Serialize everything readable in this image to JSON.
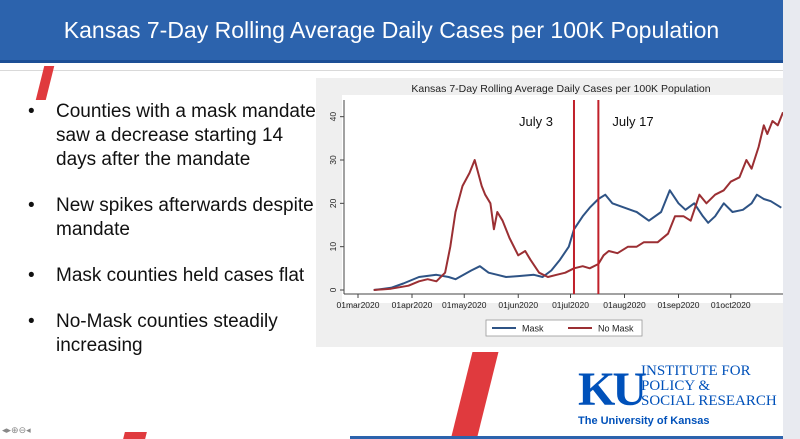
{
  "slide_title": "Kansas 7-Day Rolling Average Daily Cases per 100K Population",
  "bullets": [
    "Counties with a mask mandate saw a decrease starting 14 days after the mandate",
    "New spikes afterwards despite mandate",
    "Mask counties held cases flat",
    "No-Mask counties steadily increasing"
  ],
  "logo": {
    "letters": "KU",
    "line1": "INSTITUTE FOR",
    "line2": "POLICY &",
    "line3": "SOCIAL RESEARCH",
    "university": "The University of Kansas"
  },
  "nav_controls": "◂▸⊕⊖◂",
  "colors": {
    "title_bar": "#2c63ad",
    "accent_red": "#e03a3e",
    "mask_line": "#2e5385",
    "no_mask_line": "#9b2f33",
    "mandate_line": "#c0202a"
  },
  "chart_data": {
    "type": "line",
    "title": "Kansas 7-Day Rolling Average Daily Cases per 100K Population",
    "xlabel": "",
    "ylabel": "",
    "x_ticks": [
      "01mar2020",
      "01apr2020",
      "01may2020",
      "01jun2020",
      "01jul2020",
      "01aug2020",
      "01sep2020",
      "01oct2020"
    ],
    "x_range": [
      "2020-03-01",
      "2020-10-31"
    ],
    "y_ticks": [
      0,
      10,
      20,
      30,
      40
    ],
    "ylim": [
      0,
      42
    ],
    "grid": false,
    "legend": "bottom",
    "annotations": [
      {
        "label": "July 3",
        "date": "2020-07-03"
      },
      {
        "label": "July 17",
        "date": "2020-07-17"
      }
    ],
    "series": [
      {
        "name": "Mask",
        "color": "#2e5385",
        "points": [
          [
            "2020-03-10",
            0
          ],
          [
            "2020-03-20",
            0.5
          ],
          [
            "2020-03-27",
            1.5
          ],
          [
            "2020-04-05",
            3
          ],
          [
            "2020-04-15",
            3.5
          ],
          [
            "2020-04-22",
            3
          ],
          [
            "2020-04-26",
            2.5
          ],
          [
            "2020-05-05",
            4.5
          ],
          [
            "2020-05-10",
            5.5
          ],
          [
            "2020-05-15",
            4
          ],
          [
            "2020-05-20",
            3.5
          ],
          [
            "2020-05-25",
            3
          ],
          [
            "2020-06-01",
            3.2
          ],
          [
            "2020-06-10",
            3.5
          ],
          [
            "2020-06-15",
            3
          ],
          [
            "2020-06-20",
            4.5
          ],
          [
            "2020-06-25",
            7
          ],
          [
            "2020-06-30",
            10
          ],
          [
            "2020-07-03",
            14
          ],
          [
            "2020-07-08",
            17
          ],
          [
            "2020-07-12",
            19
          ],
          [
            "2020-07-17",
            21
          ],
          [
            "2020-07-21",
            22
          ],
          [
            "2020-07-25",
            20
          ],
          [
            "2020-08-01",
            19
          ],
          [
            "2020-08-08",
            18
          ],
          [
            "2020-08-15",
            16
          ],
          [
            "2020-08-22",
            18
          ],
          [
            "2020-08-27",
            23
          ],
          [
            "2020-09-01",
            20
          ],
          [
            "2020-09-05",
            18.5
          ],
          [
            "2020-09-10",
            20
          ],
          [
            "2020-09-15",
            17
          ],
          [
            "2020-09-18",
            15.5
          ],
          [
            "2020-09-22",
            17
          ],
          [
            "2020-09-27",
            20
          ],
          [
            "2020-10-02",
            18
          ],
          [
            "2020-10-08",
            18.5
          ],
          [
            "2020-10-13",
            20
          ],
          [
            "2020-10-16",
            22
          ],
          [
            "2020-10-20",
            21
          ],
          [
            "2020-10-24",
            20.5
          ],
          [
            "2020-10-30",
            19
          ]
        ]
      },
      {
        "name": "No Mask",
        "color": "#9b2f33",
        "points": [
          [
            "2020-03-10",
            0
          ],
          [
            "2020-03-20",
            0.3
          ],
          [
            "2020-03-30",
            1
          ],
          [
            "2020-04-05",
            2
          ],
          [
            "2020-04-10",
            2.5
          ],
          [
            "2020-04-15",
            2
          ],
          [
            "2020-04-20",
            4
          ],
          [
            "2020-04-23",
            10
          ],
          [
            "2020-04-26",
            18
          ],
          [
            "2020-04-30",
            24
          ],
          [
            "2020-05-04",
            27
          ],
          [
            "2020-05-07",
            30
          ],
          [
            "2020-05-11",
            24
          ],
          [
            "2020-05-13",
            22
          ],
          [
            "2020-05-16",
            20
          ],
          [
            "2020-05-18",
            14
          ],
          [
            "2020-05-20",
            18
          ],
          [
            "2020-05-23",
            16
          ],
          [
            "2020-05-27",
            12
          ],
          [
            "2020-06-01",
            8
          ],
          [
            "2020-06-05",
            9
          ],
          [
            "2020-06-08",
            7
          ],
          [
            "2020-06-13",
            4
          ],
          [
            "2020-06-18",
            3
          ],
          [
            "2020-06-23",
            3.5
          ],
          [
            "2020-06-28",
            4
          ],
          [
            "2020-07-03",
            5
          ],
          [
            "2020-07-08",
            5.5
          ],
          [
            "2020-07-12",
            5
          ],
          [
            "2020-07-17",
            6
          ],
          [
            "2020-07-20",
            8
          ],
          [
            "2020-07-23",
            9
          ],
          [
            "2020-07-28",
            8.5
          ],
          [
            "2020-08-03",
            10
          ],
          [
            "2020-08-08",
            10
          ],
          [
            "2020-08-12",
            11
          ],
          [
            "2020-08-20",
            11
          ],
          [
            "2020-08-26",
            13
          ],
          [
            "2020-08-30",
            17
          ],
          [
            "2020-09-04",
            17
          ],
          [
            "2020-09-08",
            16
          ],
          [
            "2020-09-13",
            22
          ],
          [
            "2020-09-17",
            20
          ],
          [
            "2020-09-22",
            22
          ],
          [
            "2020-09-27",
            23
          ],
          [
            "2020-10-01",
            25
          ],
          [
            "2020-10-06",
            26
          ],
          [
            "2020-10-10",
            30
          ],
          [
            "2020-10-13",
            28
          ],
          [
            "2020-10-17",
            33
          ],
          [
            "2020-10-20",
            38
          ],
          [
            "2020-10-22",
            36
          ],
          [
            "2020-10-25",
            39
          ],
          [
            "2020-10-28",
            38
          ],
          [
            "2020-10-31",
            41
          ]
        ]
      }
    ]
  }
}
